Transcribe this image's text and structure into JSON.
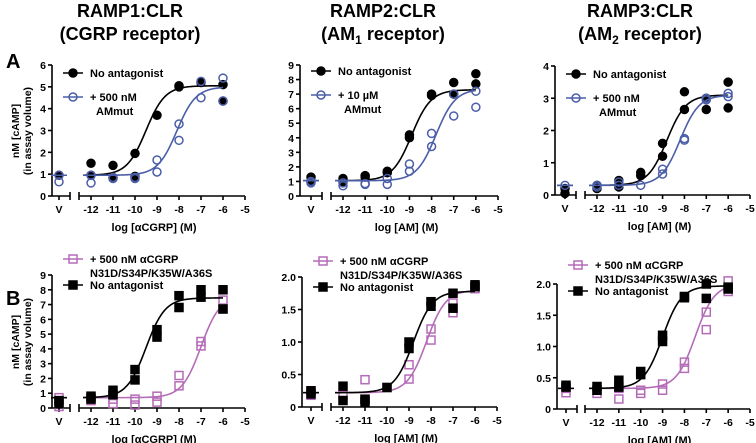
{
  "panel_labels": [
    "A",
    "B"
  ],
  "titles": [
    {
      "line1": "RAMP1:CLR",
      "line2": "(CGRP receptor)"
    },
    {
      "line1": "RAMP2:CLR",
      "line2_pre": "(AM",
      "line2_sub": "1",
      "line2_post": " receptor)"
    },
    {
      "line1": "RAMP3:CLR",
      "line2_pre": "(AM",
      "line2_sub": "2",
      "line2_post": " receptor)"
    }
  ],
  "ylabel": {
    "line1": "nM [cAMP]",
    "line2": "(in assay volume)"
  },
  "colors": {
    "black": "#000000",
    "blue": "#4a5ea8",
    "pink": "#b56cb8"
  },
  "chart_data": [
    {
      "type": "scatter",
      "title": "RAMP1:CLR (CGRP receptor)",
      "xlabel": "log [αCGRP] (M)",
      "xticks": [
        "V",
        "-12",
        "-11",
        "-10",
        "-9",
        "-8",
        "-7",
        "-6",
        "-5"
      ],
      "ylim": [
        0,
        6
      ],
      "yticks": [
        "0",
        "1",
        "2",
        "3",
        "4",
        "5",
        "6"
      ],
      "series": [
        {
          "name": "No antagonist",
          "color": "black",
          "marker": "filled-circle",
          "fit": {
            "bottom": 0.95,
            "top": 5.05,
            "logEC50": -9.5
          },
          "points": [
            [
              "V",
              0.95
            ],
            [
              -12,
              1.5
            ],
            [
              -12,
              0.95
            ],
            [
              -11,
              1.4
            ],
            [
              -11,
              0.85
            ],
            [
              -10,
              1.95
            ],
            [
              -10,
              0.9
            ],
            [
              -9,
              3.7
            ],
            [
              -8,
              5.0
            ],
            [
              -8,
              5.05
            ],
            [
              -7,
              5.2
            ],
            [
              -6,
              5.1
            ],
            [
              -6,
              4.35
            ]
          ]
        },
        {
          "name": "+ 500 nM AMmut",
          "legend_lines": [
            "+ 500 nM",
            "AMmut"
          ],
          "color": "blue",
          "marker": "open-circle",
          "fit": {
            "bottom": 0.95,
            "top": 5.0,
            "logEC50": -8.1
          },
          "points": [
            [
              "V",
              0.95
            ],
            [
              "V",
              0.65
            ],
            [
              -12,
              0.95
            ],
            [
              -12,
              0.6
            ],
            [
              -11,
              0.8
            ],
            [
              -11,
              0.85
            ],
            [
              -10,
              0.85
            ],
            [
              -10,
              0.8
            ],
            [
              -9,
              1.65
            ],
            [
              -9,
              1.1
            ],
            [
              -8,
              3.3
            ],
            [
              -8,
              2.55
            ],
            [
              -7,
              5.25
            ],
            [
              -7,
              4.5
            ],
            [
              -6,
              5.4
            ],
            [
              -6,
              4.35
            ]
          ]
        }
      ]
    },
    {
      "type": "scatter",
      "title": "RAMP2:CLR (AM1 receptor)",
      "xlabel": "log [AM] (M)",
      "xticks": [
        "V",
        "-12",
        "-11",
        "-10",
        "-9",
        "-8",
        "-7",
        "-6",
        "-5"
      ],
      "ylim": [
        0,
        9
      ],
      "yticks": [
        "0",
        "1",
        "2",
        "3",
        "4",
        "5",
        "6",
        "7",
        "8",
        "9"
      ],
      "series": [
        {
          "name": "No antagonist",
          "color": "black",
          "marker": "filled-circle",
          "fit": {
            "bottom": 1.05,
            "top": 7.3,
            "logEC50": -8.9
          },
          "points": [
            [
              "V",
              1.3
            ],
            [
              "V",
              1.0
            ],
            [
              -12,
              1.2
            ],
            [
              -12,
              1.0
            ],
            [
              -11,
              1.4
            ],
            [
              -11,
              1.3
            ],
            [
              -10,
              1.7
            ],
            [
              -10,
              1.6
            ],
            [
              -9,
              4.2
            ],
            [
              -9,
              4.0
            ],
            [
              -8,
              7.0
            ],
            [
              -8,
              6.9
            ],
            [
              -7,
              7.8
            ],
            [
              -7,
              7.0
            ],
            [
              -6,
              8.4
            ],
            [
              -6,
              7.7
            ]
          ]
        },
        {
          "name": "+ 10 µM AMmut",
          "legend_lines": [
            "+ 10 µM",
            "AMmut"
          ],
          "color": "blue",
          "marker": "open-circle",
          "fit": {
            "bottom": 1.05,
            "top": 7.35,
            "logEC50": -7.8
          },
          "points": [
            [
              "V",
              1.0
            ],
            [
              "V",
              0.9
            ],
            [
              -12,
              0.9
            ],
            [
              -12,
              0.7
            ],
            [
              -11,
              0.8
            ],
            [
              -11,
              0.85
            ],
            [
              -10,
              1.2
            ],
            [
              -10,
              0.8
            ],
            [
              -9,
              2.2
            ],
            [
              -9,
              1.7
            ],
            [
              -8,
              4.3
            ],
            [
              -8,
              3.4
            ],
            [
              -7,
              7.0
            ],
            [
              -7,
              5.5
            ],
            [
              -6,
              7.2
            ],
            [
              -6,
              6.1
            ]
          ]
        }
      ]
    },
    {
      "type": "scatter",
      "title": "RAMP3:CLR (AM2 receptor)",
      "xlabel": "log [AM] (M)",
      "xticks": [
        "V",
        "-12",
        "-11",
        "-10",
        "-9",
        "-8",
        "-7",
        "-6",
        "-5"
      ],
      "ylim": [
        0,
        4
      ],
      "yticks": [
        "0",
        "1",
        "2",
        "3",
        "4"
      ],
      "series": [
        {
          "name": "No antagonist",
          "color": "black",
          "marker": "filled-circle",
          "fit": {
            "bottom": 0.3,
            "top": 3.1,
            "logEC50": -8.8
          },
          "points": [
            [
              "V",
              0.2
            ],
            [
              "V",
              0.05
            ],
            [
              -12,
              0.3
            ],
            [
              -12,
              0.2
            ],
            [
              -11,
              0.45
            ],
            [
              -11,
              0.25
            ],
            [
              -10,
              0.7
            ],
            [
              -10,
              0.6
            ],
            [
              -9,
              1.6
            ],
            [
              -9,
              1.2
            ],
            [
              -8,
              3.2
            ],
            [
              -8,
              2.65
            ],
            [
              -7,
              3.0
            ],
            [
              -7,
              2.65
            ],
            [
              -6,
              3.5
            ],
            [
              -6,
              2.7
            ]
          ]
        },
        {
          "name": "+ 500 nM AMmut",
          "legend_lines": [
            "+ 500 nM",
            "AMmut"
          ],
          "color": "blue",
          "marker": "open-circle",
          "fit": {
            "bottom": 0.3,
            "top": 3.1,
            "logEC50": -8.2
          },
          "points": [
            [
              "V",
              0.3
            ],
            [
              -12,
              0.3
            ],
            [
              -12,
              0.25
            ],
            [
              -11,
              0.4
            ],
            [
              -11,
              0.3
            ],
            [
              -10,
              0.3
            ],
            [
              -9,
              0.8
            ],
            [
              -9,
              0.65
            ],
            [
              -8,
              1.75
            ],
            [
              -8,
              1.7
            ],
            [
              -7,
              3.0
            ],
            [
              -7,
              2.95
            ],
            [
              -6,
              3.15
            ],
            [
              -6,
              3.05
            ]
          ]
        }
      ]
    },
    {
      "type": "scatter",
      "xlabel": "log [αCGRP] (M)",
      "xticks": [
        "V",
        "-12",
        "-11",
        "-10",
        "-9",
        "-8",
        "-7",
        "-6",
        "-5"
      ],
      "ylim": [
        0,
        9
      ],
      "yticks": [
        "0",
        "1",
        "2",
        "3",
        "4",
        "5",
        "6",
        "7",
        "8",
        "9"
      ],
      "series": [
        {
          "name": "+ 500 nM αCGRP N31D/S34P/K35W/A36S",
          "legend_lines": [
            "+ 500 nM αCGRP",
            "N31D/S34P/K35W/A36S"
          ],
          "color": "pink",
          "marker": "open-square",
          "fit": {
            "bottom": 0.7,
            "top": 7.6,
            "logEC50": -7.0
          },
          "points": [
            [
              "V",
              0.7
            ],
            [
              "V",
              0.1
            ],
            [
              -12,
              0.7
            ],
            [
              -12,
              0.5
            ],
            [
              -11,
              0.6
            ],
            [
              -11,
              0.3
            ],
            [
              -10,
              0.6
            ],
            [
              -10,
              0.2
            ],
            [
              -9,
              0.8
            ],
            [
              -9,
              0.4
            ],
            [
              -8,
              2.2
            ],
            [
              -8,
              1.5
            ],
            [
              -7,
              4.5
            ],
            [
              -7,
              4.2
            ],
            [
              -6,
              7.3
            ],
            [
              -6,
              6.7
            ]
          ]
        },
        {
          "name": "No antagonist",
          "color": "black",
          "marker": "filled-square",
          "fit": {
            "bottom": 0.7,
            "top": 7.45,
            "logEC50": -9.5
          },
          "points": [
            [
              "V",
              0.5
            ],
            [
              "V",
              0.3
            ],
            [
              -12,
              0.8
            ],
            [
              -12,
              0.6
            ],
            [
              -11,
              1.2
            ],
            [
              -11,
              0.9
            ],
            [
              -10,
              2.6
            ],
            [
              -10,
              1.9
            ],
            [
              -9,
              5.3
            ],
            [
              -9,
              4.8
            ],
            [
              -8,
              7.6
            ],
            [
              -8,
              6.8
            ],
            [
              -7,
              8.0
            ],
            [
              -7,
              7.5
            ],
            [
              -6,
              8.0
            ],
            [
              -6,
              6.7
            ]
          ]
        }
      ]
    },
    {
      "type": "scatter",
      "xlabel": "log [AM] (M)",
      "xticks": [
        "V",
        "-12",
        "-11",
        "-10",
        "-9",
        "-8",
        "-7",
        "-6",
        "-5"
      ],
      "ylim": [
        0,
        2
      ],
      "yticks": [
        "0",
        "0.5",
        "1.0",
        "1.5",
        "2.0"
      ],
      "series": [
        {
          "name": "+ 500 nM αCGRP N31D/S34P/K35W/A36S",
          "legend_lines": [
            "+ 500 nM αCGRP",
            "N31D/S34P/K35W/A36S"
          ],
          "color": "pink",
          "marker": "open-square",
          "fit": {
            "bottom": 0.22,
            "top": 1.8,
            "logEC50": -8.2
          },
          "points": [
            [
              "V",
              0.25
            ],
            [
              "V",
              0.18
            ],
            [
              -12,
              0.18
            ],
            [
              -11,
              0.42
            ],
            [
              -11,
              0.12
            ],
            [
              -10,
              0.3
            ],
            [
              -9,
              0.65
            ],
            [
              -9,
              0.43
            ],
            [
              -8,
              1.2
            ],
            [
              -8,
              1.03
            ],
            [
              -7,
              1.6
            ],
            [
              -7,
              1.45
            ],
            [
              -6,
              1.85
            ],
            [
              -6,
              1.82
            ]
          ]
        },
        {
          "name": "No antagonist",
          "color": "black",
          "marker": "filled-square",
          "fit": {
            "bottom": 0.22,
            "top": 1.78,
            "logEC50": -8.8
          },
          "points": [
            [
              "V",
              0.25
            ],
            [
              "V",
              0.2
            ],
            [
              -12,
              0.32
            ],
            [
              -12,
              0.1
            ],
            [
              -11,
              0.12
            ],
            [
              -11,
              0.08
            ],
            [
              -10,
              0.3
            ],
            [
              -9,
              1.0
            ],
            [
              -9,
              0.9
            ],
            [
              -8,
              1.62
            ],
            [
              -8,
              1.55
            ],
            [
              -7,
              1.75
            ],
            [
              -7,
              1.52
            ],
            [
              -6,
              1.88
            ],
            [
              -6,
              1.85
            ]
          ]
        }
      ]
    },
    {
      "type": "scatter",
      "xlabel": "log [AM] (M)",
      "xticks": [
        "V",
        "-12",
        "-11",
        "-10",
        "-9",
        "-8",
        "-7",
        "-6",
        "-5"
      ],
      "ylim": [
        0,
        2
      ],
      "yticks": [
        "0",
        "0.5",
        "1.0",
        "1.5",
        "2.0"
      ],
      "series": [
        {
          "name": "+ 500 nM αCGRP N31D/S34P/K35W/A36S",
          "legend_lines": [
            "+ 500 nM αCGRP",
            "N31D/S34P/K35W/A36S"
          ],
          "color": "pink",
          "marker": "open-square",
          "fit": {
            "bottom": 0.33,
            "top": 2.0,
            "logEC50": -7.5
          },
          "points": [
            [
              "V",
              0.33
            ],
            [
              "V",
              0.26
            ],
            [
              -12,
              0.3
            ],
            [
              -12,
              0.25
            ],
            [
              -11,
              0.33
            ],
            [
              -11,
              0.16
            ],
            [
              -10,
              0.3
            ],
            [
              -10,
              0.25
            ],
            [
              -9,
              0.4
            ],
            [
              -9,
              0.3
            ],
            [
              -8,
              0.75
            ],
            [
              -8,
              0.65
            ],
            [
              -7,
              1.55
            ],
            [
              -7,
              1.27
            ],
            [
              -6,
              2.05
            ],
            [
              -6,
              1.88
            ]
          ]
        },
        {
          "name": "No antagonist",
          "color": "black",
          "marker": "filled-square",
          "fit": {
            "bottom": 0.33,
            "top": 1.97,
            "logEC50": -9.0
          },
          "points": [
            [
              "V",
              0.38
            ],
            [
              "V",
              0.35
            ],
            [
              -12,
              0.36
            ],
            [
              -12,
              0.3
            ],
            [
              -11,
              0.46
            ],
            [
              -11,
              0.35
            ],
            [
              -10,
              0.6
            ],
            [
              -10,
              0.55
            ],
            [
              -9,
              1.18
            ],
            [
              -9,
              1.08
            ],
            [
              -8,
              1.8
            ],
            [
              -8,
              1.78
            ],
            [
              -7,
              2.0
            ],
            [
              -7,
              1.77
            ],
            [
              -6,
              1.95
            ],
            [
              -6,
              1.92
            ]
          ]
        }
      ]
    }
  ]
}
